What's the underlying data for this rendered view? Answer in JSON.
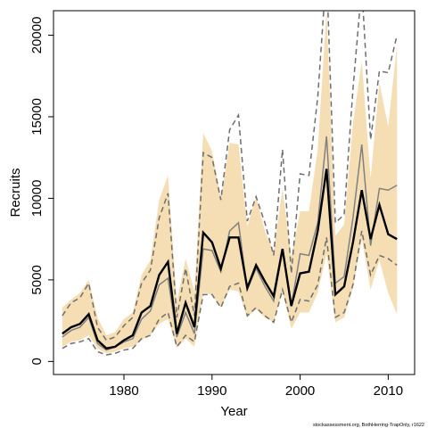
{
  "chart_data": {
    "type": "line",
    "title": "",
    "xlabel": "Year",
    "ylabel": "Recruits",
    "xlim": [
      1972,
      2013
    ],
    "ylim": [
      -800,
      21500
    ],
    "xticks": [
      1980,
      1990,
      2000,
      2010
    ],
    "yticks": [
      0,
      5000,
      10000,
      15000,
      20000
    ],
    "footnote": "stockassessment.org, BothHerring-TrapOnly, r1622",
    "colors": {
      "band": "#f5deb3",
      "estimate": "#000000",
      "other_estimate": "#808080",
      "other_bounds": "#6e6e6e"
    },
    "x": [
      1973,
      1974,
      1975,
      1976,
      1977,
      1978,
      1979,
      1980,
      1981,
      1982,
      1983,
      1984,
      1985,
      1986,
      1987,
      1988,
      1989,
      1990,
      1991,
      1992,
      1993,
      1994,
      1995,
      1996,
      1997,
      1998,
      1999,
      2000,
      2001,
      2002,
      2003,
      2004,
      2005,
      2006,
      2007,
      2008,
      2009,
      2010,
      2011
    ],
    "series": [
      {
        "role": "confidence-band",
        "lower": [
          900,
          1200,
          1300,
          1600,
          800,
          500,
          600,
          800,
          900,
          1300,
          1600,
          2300,
          2600,
          800,
          1400,
          900,
          4200,
          4100,
          3300,
          4400,
          4300,
          2700,
          3200,
          2700,
          2400,
          4300,
          2000,
          3000,
          3000,
          4200,
          6600,
          2400,
          2700,
          4500,
          7500,
          4400,
          6200,
          4200,
          2900
        ],
        "upper": [
          3300,
          3800,
          4200,
          5000,
          2700,
          1600,
          1800,
          2600,
          3000,
          5300,
          6200,
          9900,
          11400,
          3700,
          6300,
          4300,
          14000,
          12900,
          10000,
          13400,
          13300,
          8300,
          10100,
          8000,
          6700,
          10600,
          6400,
          9200,
          9200,
          13000,
          21500,
          7700,
          8400,
          14600,
          18400,
          11200,
          17100,
          14400,
          19400
        ]
      },
      {
        "role": "estimate",
        "values": [
          1700,
          2100,
          2300,
          2900,
          1300,
          800,
          900,
          1300,
          1600,
          3000,
          3400,
          5300,
          6100,
          1700,
          3600,
          2100,
          7900,
          7300,
          5700,
          7600,
          7600,
          4500,
          5900,
          4900,
          4000,
          6900,
          3400,
          5400,
          5500,
          8000,
          11800,
          4100,
          4600,
          7300,
          10500,
          7500,
          9600,
          7800,
          7500
        ]
      },
      {
        "role": "comparison-estimate",
        "values": [
          1500,
          1900,
          2100,
          2700,
          1100,
          700,
          900,
          1200,
          1400,
          2600,
          3100,
          4700,
          5100,
          1500,
          3000,
          1700,
          6900,
          6800,
          5500,
          8000,
          8500,
          4400,
          5700,
          4600,
          3700,
          6800,
          3400,
          6600,
          6500,
          8500,
          13800,
          4800,
          5200,
          8800,
          13300,
          7100,
          10600,
          10500,
          10800
        ]
      },
      {
        "role": "comparison-lower",
        "values": [
          800,
          1100,
          1200,
          1400,
          600,
          400,
          500,
          700,
          800,
          1400,
          1600,
          2600,
          3000,
          900,
          1600,
          1200,
          4100,
          4100,
          3300,
          4600,
          4800,
          2800,
          3300,
          2800,
          2400,
          4400,
          2400,
          3800,
          3700,
          4700,
          7600,
          2700,
          3000,
          4700,
          8000,
          5300,
          6500,
          6300,
          5900
        ]
      },
      {
        "role": "comparison-upper",
        "values": [
          2800,
          3600,
          3900,
          4800,
          2100,
          1300,
          1500,
          2200,
          2700,
          4800,
          5600,
          8800,
          10300,
          2700,
          5700,
          2800,
          12800,
          12500,
          9900,
          14200,
          15100,
          8600,
          10100,
          8500,
          6500,
          13000,
          5400,
          11500,
          11400,
          16200,
          24000,
          8500,
          9000,
          16700,
          23000,
          13600,
          17800,
          17700,
          20000
        ]
      }
    ]
  }
}
